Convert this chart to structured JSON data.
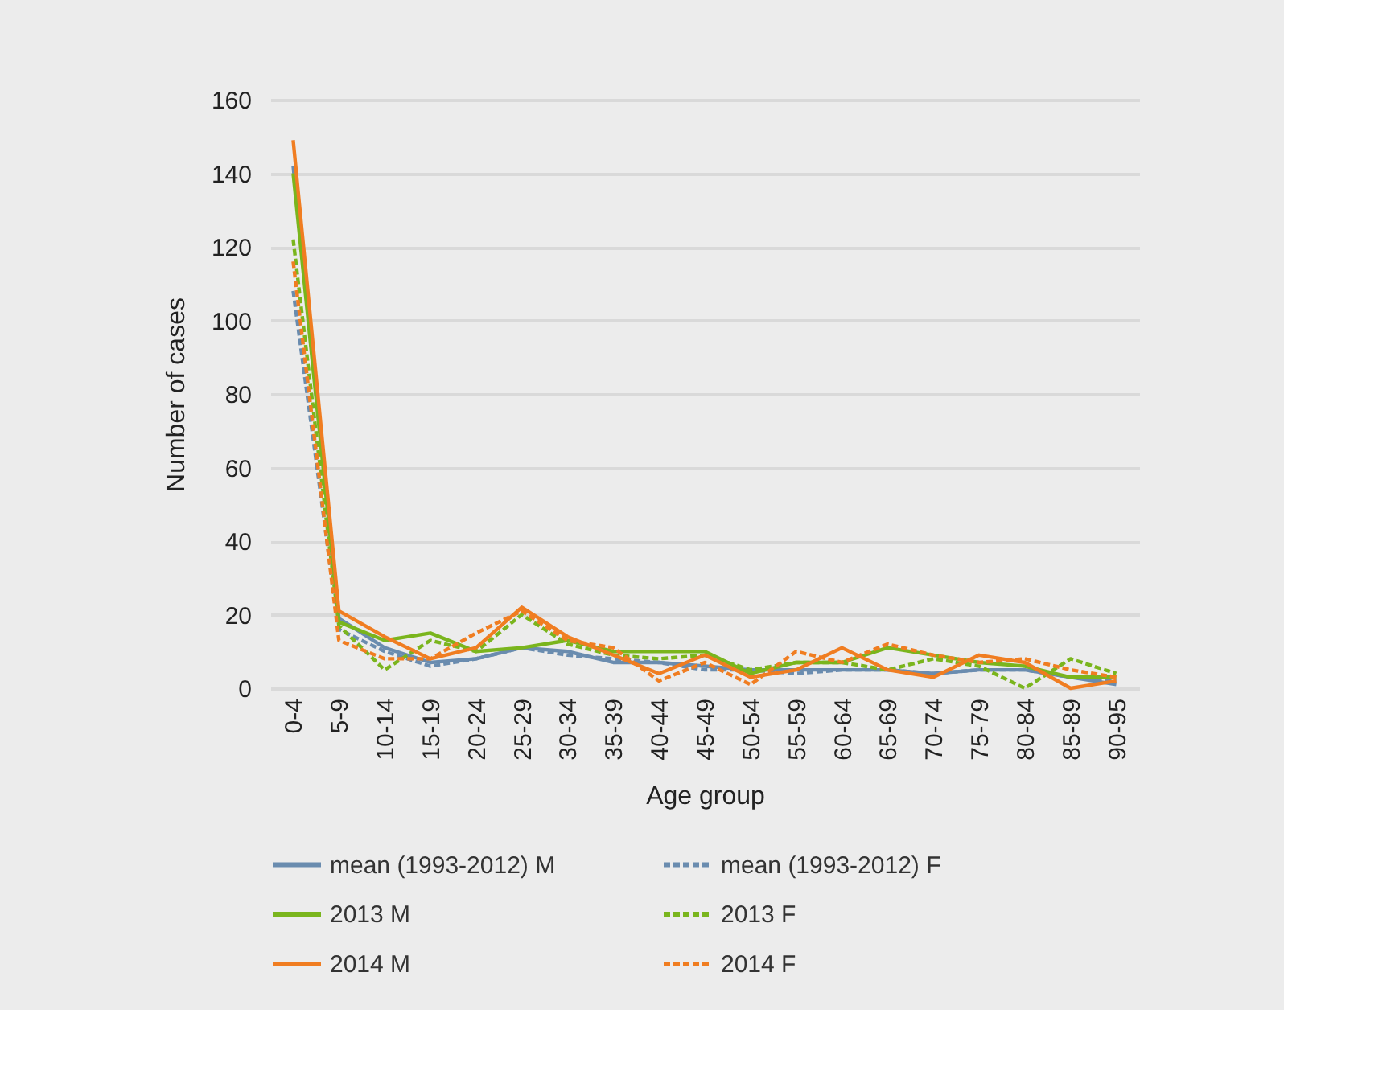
{
  "chart_data": {
    "type": "line",
    "xlabel": "Age group",
    "ylabel": "Number of cases",
    "categories": [
      "0-4",
      "5-9",
      "10-14",
      "15-19",
      "20-24",
      "25-29",
      "30-34",
      "35-39",
      "40-44",
      "45-49",
      "50-54",
      "55-59",
      "60-64",
      "65-69",
      "70-74",
      "75-79",
      "80-84",
      "85-89",
      "90-95"
    ],
    "ylim": [
      0,
      160
    ],
    "yticks": [
      0,
      20,
      40,
      60,
      80,
      100,
      120,
      140,
      160
    ],
    "grid": "y",
    "legend": "bottom",
    "marker": "none",
    "series": [
      {
        "name": "mean (1993-2012) M",
        "color": "#6a8caf",
        "line_style": "solid",
        "values": [
          142,
          19,
          11,
          7,
          8,
          11,
          10,
          7,
          7,
          6,
          5,
          5,
          5,
          5,
          4,
          5,
          5,
          3,
          1
        ]
      },
      {
        "name": "mean (1993-2012) F",
        "color": "#6a8caf",
        "line_style": "dashed",
        "values": [
          108,
          16,
          10,
          6,
          8,
          11,
          9,
          8,
          7,
          5,
          5,
          4,
          5,
          5,
          4,
          5,
          5,
          3,
          2
        ]
      },
      {
        "name": "2013 M",
        "color": "#7ab51d",
        "line_style": "solid",
        "values": [
          140,
          18,
          13,
          15,
          10,
          11,
          13,
          10,
          10,
          10,
          4,
          7,
          7,
          11,
          9,
          7,
          6,
          3,
          3
        ]
      },
      {
        "name": "2013 F",
        "color": "#7ab51d",
        "line_style": "dashed",
        "values": [
          122,
          17,
          5,
          13,
          10,
          20,
          12,
          9,
          8,
          9,
          5,
          7,
          7,
          5,
          8,
          6,
          0,
          8,
          4
        ]
      },
      {
        "name": "2014 M",
        "color": "#f07d21",
        "line_style": "solid",
        "values": [
          149,
          21,
          14,
          8,
          11,
          22,
          14,
          9,
          4,
          9,
          3,
          5,
          11,
          5,
          3,
          9,
          7,
          0,
          2
        ]
      },
      {
        "name": "2014 F",
        "color": "#f07d21",
        "line_style": "dashed",
        "values": [
          116,
          13,
          8,
          8,
          15,
          21,
          13,
          11,
          2,
          7,
          1,
          10,
          7,
          12,
          9,
          7,
          8,
          5,
          3
        ]
      }
    ]
  }
}
